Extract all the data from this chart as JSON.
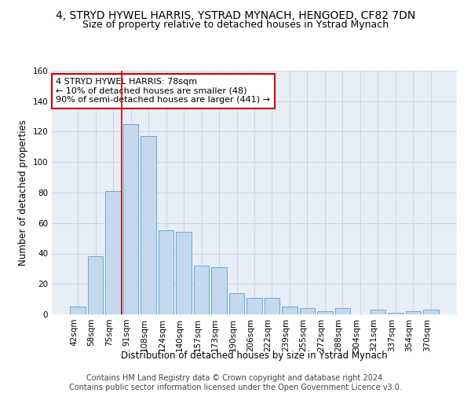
{
  "title": "4, STRYD HYWEL HARRIS, YSTRAD MYNACH, HENGOED, CF82 7DN",
  "subtitle": "Size of property relative to detached houses in Ystrad Mynach",
  "xlabel": "Distribution of detached houses by size in Ystrad Mynach",
  "ylabel": "Number of detached properties",
  "categories": [
    "42sqm",
    "58sqm",
    "75sqm",
    "91sqm",
    "108sqm",
    "124sqm",
    "140sqm",
    "157sqm",
    "173sqm",
    "190sqm",
    "206sqm",
    "222sqm",
    "239sqm",
    "255sqm",
    "272sqm",
    "288sqm",
    "304sqm",
    "321sqm",
    "337sqm",
    "354sqm",
    "370sqm"
  ],
  "values": [
    5,
    38,
    81,
    125,
    117,
    55,
    54,
    32,
    31,
    14,
    11,
    11,
    5,
    4,
    2,
    4,
    0,
    3,
    1,
    2,
    3
  ],
  "bar_color": "#c5d8ed",
  "bar_edge_color": "#6aaad4",
  "bar_width": 0.85,
  "ylim": [
    0,
    160
  ],
  "yticks": [
    0,
    20,
    40,
    60,
    80,
    100,
    120,
    140,
    160
  ],
  "red_line_x": 2.5,
  "annotation_line1": "4 STRYD HYWEL HARRIS: 78sqm",
  "annotation_line2": "← 10% of detached houses are smaller (48)",
  "annotation_line3": "90% of semi-detached houses are larger (441) →",
  "annotation_box_color": "#ffffff",
  "annotation_box_edge_color": "#cc0000",
  "footer_line1": "Contains HM Land Registry data © Crown copyright and database right 2024.",
  "footer_line2": "Contains public sector information licensed under the Open Government Licence v3.0.",
  "title_fontsize": 10,
  "subtitle_fontsize": 9,
  "axis_label_fontsize": 8.5,
  "tick_fontsize": 7.5,
  "annotation_fontsize": 8,
  "footer_fontsize": 7,
  "grid_color": "#ccd6e8",
  "background_color": "#e8eef6"
}
